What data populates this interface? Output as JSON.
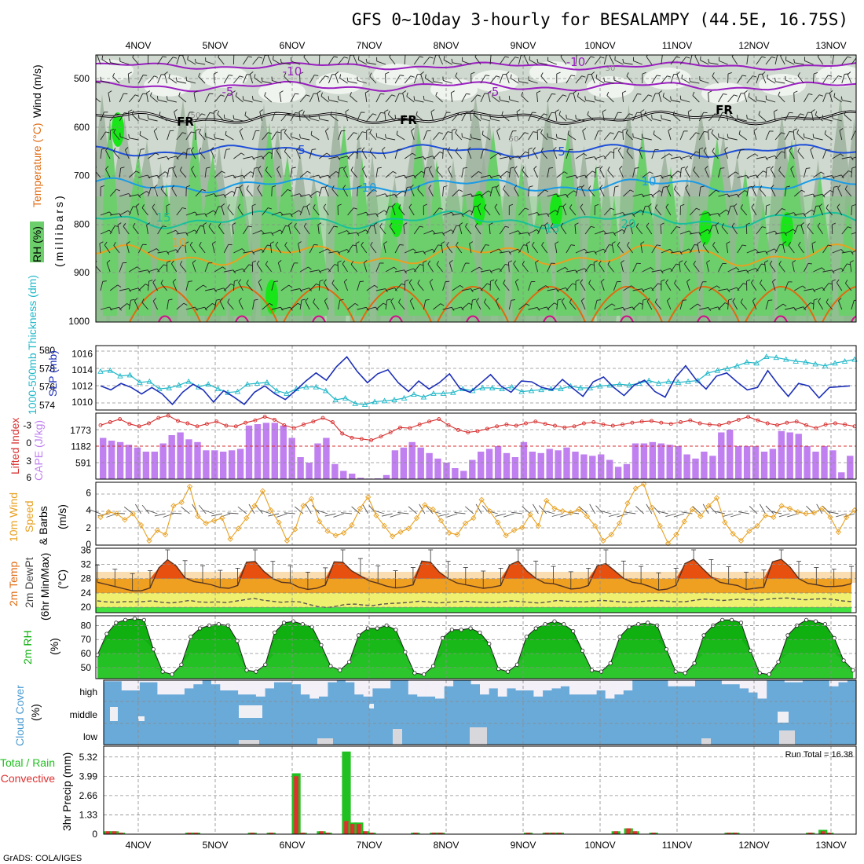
{
  "title": "GFS 0~10day 3-hourly for BESALAMPY (44.5E, 16.75S)",
  "credit": "GrADS: COLA/IGES",
  "date_labels": [
    "4NOV",
    "5NOV",
    "6NOV",
    "7NOV",
    "8NOV",
    "9NOV",
    "10NOV",
    "11NOV",
    "12NOV",
    "13NOV"
  ],
  "colors": {
    "rh_light": "#cfd9cf",
    "rh_mid": "#9aae9a",
    "rh_green": "#6ccf6c",
    "rh_bright": "#19e619",
    "temp_purple": "#9a1fc0",
    "temp_blue": "#1f4fd8",
    "temp_lightblue": "#1a9be6",
    "temp_teal": "#19c09a",
    "temp_orange": "#e8a020",
    "temp_darkorange": "#e06a10",
    "slp_line": "#1c2fb8",
    "thickness_line": "#20b8c8",
    "lifted_index": "#d83030",
    "cape_bar": "#c080f0",
    "wind_speed": "#e8a020",
    "temp_fill_hot": "#e85010",
    "temp_fill_warm": "#f0a020",
    "dew_fill": "#f0f070",
    "rh_green_dark": "#10b010",
    "cloud_blue": "#6aaad8",
    "precip_total": "#20c020",
    "precip_conv": "#e03030"
  },
  "panels": {
    "upper_air": {
      "ylabel_rh": "RH (%)",
      "ylabel_temp": "Temperature (°C)",
      "ylabel_wind": "Wind (m/s)",
      "ylabel_unit": "(millibars)",
      "y_ticks": [
        "500",
        "600",
        "700",
        "800",
        "900",
        "1000"
      ],
      "contour_labels": [
        "-10",
        "-10",
        "-5",
        "-5",
        "FR",
        "FR",
        "FR",
        "5",
        "5",
        "10",
        "10",
        "15",
        "15",
        "10",
        "20",
        "30",
        "50",
        "50"
      ]
    },
    "slp": {
      "ylabel_thk": "1000-500mb Thickness (dm)",
      "ylabel_slp": "SLP (mb)",
      "left_ticks": [
        "580",
        "578",
        "576",
        "574"
      ],
      "right_ticks": [
        "1016",
        "1014",
        "1012",
        "1010"
      ]
    },
    "li": {
      "ylabel_li": "Lifted Index",
      "ylabel_cape": "CAPE (J/kg)",
      "left_ticks": [
        "-3",
        "0",
        "3",
        "6"
      ],
      "right_ticks": [
        "1773",
        "1182",
        "591"
      ]
    },
    "wind10": {
      "ylabel1": "10m Wind",
      "ylabel2": "Speed",
      "ylabel3": "& Barbs",
      "unit": "(m/s)",
      "ticks": [
        "6",
        "4",
        "2",
        "0"
      ]
    },
    "temp2m": {
      "ylabel1": "2m Temp",
      "ylabel2": "2m DewPt",
      "ylabel3": "(6hr Min/Max)",
      "unit": "(°C)",
      "ticks": [
        "36",
        "32",
        "28",
        "24",
        "20"
      ]
    },
    "rh2m": {
      "ylabel": "2m RH",
      "unit": "(%)",
      "ticks": [
        "80",
        "70",
        "60",
        "50"
      ]
    },
    "cloud": {
      "ylabel": "Cloud Cover",
      "unit": "(%)",
      "levels": [
        "high",
        "middle",
        "low"
      ]
    },
    "precip": {
      "ylabel_total": "Total / Rain",
      "ylabel_conv": "Convective",
      "ylabel": "3hr Precip (mm)",
      "ticks": [
        "5.32",
        "3.99",
        "2.66",
        "1.33",
        "0"
      ],
      "run_total": "Run Total = 16.38"
    }
  },
  "chart_data": [
    {
      "type": "line",
      "name": "slp",
      "ylabel": "SLP (mb)",
      "ylim": [
        1009,
        1017
      ],
      "values": [
        1012,
        1011.5,
        1012.3,
        1011.8,
        1011,
        1011.8,
        1011,
        1009.7,
        1011.2,
        1012.2,
        1011.5,
        1010,
        1011.4,
        1010.6,
        1009.7,
        1011.2,
        1012,
        1011,
        1010.3,
        1011.4,
        1012.6,
        1013.6,
        1012.7,
        1014.4,
        1015.6,
        1013.8,
        1012.4,
        1013.5,
        1014,
        1012.4,
        1011.3,
        1012.6,
        1011.6,
        1012.4,
        1013.5,
        1011.7,
        1011.2,
        1012.3,
        1013.4,
        1012,
        1011.2,
        1012.6,
        1012.5,
        1011.8,
        1011.5,
        1012.8,
        1011.7,
        1010.7,
        1012.5,
        1013.1,
        1011.8,
        1010.8,
        1012.1,
        1012.7,
        1011.3,
        1010.6,
        1013,
        1014.5,
        1012.8,
        1011.6,
        1013.2,
        1013.6,
        1012.5,
        1011.5,
        1011.8,
        1013.9,
        1012.2,
        1010.7,
        1012.3,
        1012,
        1010.5,
        1011.8,
        1011.9,
        1012
      ],
      "grid": true
    },
    {
      "type": "line",
      "name": "thickness",
      "ylabel": "1000-500mb Thickness (dm)",
      "ylim": [
        573.5,
        580.5
      ],
      "values": [
        577.7,
        577.8,
        577.2,
        577.3,
        576.5,
        576.6,
        575.8,
        575.9,
        576.2,
        576.6,
        576,
        576.3,
        575.8,
        575.4,
        575.5,
        576.3,
        576.4,
        576.5,
        575.6,
        575.3,
        575.8,
        576,
        576,
        575.6,
        574.6,
        574.8,
        574.2,
        574.1,
        574.4,
        574.5,
        574.6,
        574.8,
        575.2,
        574.9,
        575.3,
        575.3,
        575.4,
        575.8,
        575.6,
        575.9,
        575.9,
        575.8,
        576,
        575.5,
        575.6,
        575.7,
        575.8,
        575.8,
        576.1,
        575.9,
        575.9,
        576.1,
        576.2,
        576.3,
        576.2,
        576.4,
        576.7,
        576.4,
        576.6,
        576.5,
        576.6,
        576.7,
        577.5,
        577.8,
        578,
        578.3,
        578.7,
        578.6,
        579.3,
        579.2,
        579,
        578.8,
        578.7,
        578.5,
        578.3,
        578.6,
        578.8,
        579
      ],
      "grid": true
    },
    {
      "type": "line",
      "name": "lifted_index",
      "ylabel": "Lifted Index",
      "ylim": [
        -5,
        6
      ],
      "values": [
        -3,
        -3.5,
        -4,
        -3.2,
        -2.8,
        -3.3,
        -4.2,
        -4.6,
        -3.7,
        -3.3,
        -2.8,
        -3.2,
        -3.6,
        -2.9,
        -2.8,
        -3.4,
        -3.8,
        -4.4,
        -3.9,
        -3,
        -2.5,
        -3.1,
        -3.6,
        -4.2,
        -3.5,
        -1.6,
        -0.9,
        -0.7,
        -0.5,
        -1.1,
        -1.8,
        -2.6,
        -2.5,
        -3.1,
        -3.6,
        -4,
        -3,
        -2.2,
        -1.8,
        -2,
        -2.4,
        -2.8,
        -3.1,
        -2.9,
        -3.3,
        -3.6,
        -3.2,
        -2.9,
        -2.6,
        -2.8,
        -3.3,
        -3.5,
        -3.1,
        -2.9,
        -3.1,
        -3.4,
        -3.6,
        -3.7,
        -3.4,
        -3.2,
        -3.5,
        -3.8,
        -3.3,
        -3.1,
        -3,
        -3.4,
        -3.9,
        -4.4,
        -3.8,
        -3.3,
        -3,
        -3.4,
        -3.6,
        -3,
        -2.5,
        -3.1,
        -3.3,
        -3.1,
        -2.8
      ],
      "grid": true
    },
    {
      "type": "bar",
      "name": "cape",
      "ylabel": "CAPE (J/kg)",
      "ylim": [
        0,
        2400
      ],
      "values": [
        1500,
        1400,
        1350,
        1250,
        1150,
        1000,
        1000,
        1300,
        1600,
        1700,
        1450,
        1350,
        1050,
        1050,
        1000,
        1050,
        1100,
        1950,
        2000,
        2050,
        2050,
        1950,
        1500,
        800,
        600,
        1300,
        1500,
        550,
        300,
        200,
        50,
        20,
        30,
        150,
        1050,
        1150,
        1350,
        1150,
        950,
        750,
        600,
        400,
        300,
        700,
        1000,
        1100,
        1200,
        950,
        800,
        1350,
        1000,
        950,
        1100,
        1050,
        1150,
        1000,
        900,
        850,
        900,
        700,
        450,
        550,
        1300,
        1300,
        1350,
        1300,
        1250,
        1200,
        900,
        750,
        1000,
        850,
        1700,
        1800,
        1200,
        1200,
        1200,
        1000,
        1100,
        1750,
        1700,
        1650,
        1200,
        1000,
        1200,
        1050,
        250,
        850
      ],
      "grid": true
    },
    {
      "type": "line",
      "name": "wind_speed_10m",
      "ylabel": "(m/s)",
      "ylim": [
        0,
        7.2
      ],
      "values": [
        3.2,
        3.8,
        3.6,
        2.9,
        3.6,
        2.3,
        0.5,
        1.7,
        1.2,
        4.5,
        4.9,
        6.7,
        3.3,
        2.5,
        2.8,
        3.1,
        0.7,
        1.9,
        3.1,
        4.5,
        6.2,
        4,
        2.6,
        0.5,
        1.8,
        4.5,
        5.3,
        2.7,
        1.6,
        1.1,
        1.4,
        2.3,
        4.2,
        5.5,
        3.4,
        2.2,
        1,
        1.5,
        1.9,
        3.1,
        4.6,
        4.1,
        2.8,
        1.4,
        1.2,
        2.5,
        3.1,
        5.2,
        3.9,
        2.6,
        1.1,
        1.7,
        2,
        3.5,
        2.2,
        5.1,
        4.2,
        3.9,
        3.7,
        4.1,
        3.3,
        2.2,
        0.5,
        1.2,
        2.5,
        4.8,
        6.5,
        7,
        4.3,
        2.2,
        0.2,
        1.2,
        2.7,
        4.1,
        3.3,
        4.5,
        5.4,
        2.6,
        1.3,
        0.5,
        1.6,
        2.2,
        3.4,
        3.2,
        4.5,
        4.2,
        3.8,
        3.6,
        3.7,
        4.2,
        3.2,
        1.5,
        3.2,
        4
      ],
      "grid": true
    },
    {
      "type": "area",
      "name": "temp_2m",
      "ylabel": "(°C)",
      "ylim": [
        18.5,
        36.5
      ],
      "values": [
        27,
        26.4,
        25.8,
        25.2,
        24.6,
        24.6,
        25.4,
        31,
        33.3,
        31.5,
        28.2,
        27.2,
        26.8,
        26.3,
        25.5,
        25.3,
        26.1,
        32.6,
        32.8,
        30,
        28,
        27,
        26.8,
        25.6,
        25,
        25.3,
        26.2,
        32.7,
        32.6,
        30.2,
        28.8,
        27.4,
        26.7,
        25.9,
        25.4,
        25.7,
        26.3,
        32.9,
        32.6,
        29.8,
        28,
        26.8,
        26.3,
        25.8,
        25.3,
        25.6,
        26.1,
        31.8,
        32.9,
        30.1,
        28.1,
        26.8,
        26.6,
        25.9,
        25.1,
        25.3,
        26.1,
        31.6,
        32.2,
        30.2,
        28.1,
        27,
        26.6,
        25.8,
        24.8,
        25.1,
        26.1,
        32.2,
        33.4,
        30.9,
        28.5,
        27,
        26.5,
        26.1,
        25,
        25.3,
        25.6,
        32.7,
        33.4,
        31.2,
        28,
        26.7,
        26.3,
        25.8,
        25.8,
        26,
        26.6
      ],
      "grid": true
    },
    {
      "type": "line",
      "name": "dewpoint_2m",
      "ylabel": "(°C)",
      "ylim": [
        18.5,
        36.5
      ],
      "values": [
        21.8,
        21.5,
        21.4,
        21.6,
        21.5,
        21.6,
        21.8,
        21.4,
        21.2,
        21.5,
        21.9,
        21.5,
        21.4,
        21.5,
        21.3,
        21.7,
        22.1,
        22.5,
        22,
        21.7,
        21.4,
        21.6,
        21.5,
        20.8,
        20.2,
        19.9,
        20.3,
        20.8,
        20.9,
        20.6,
        20.5,
        20.9,
        21.1,
        21.2,
        21.4,
        21.7,
        21.5,
        21.2,
        21.4,
        21.5,
        21.7,
        21.5,
        21.4,
        21.3,
        21.5,
        21.8,
        21.6,
        21.4,
        21.2,
        21.5,
        21.9,
        21.7,
        21.6,
        21.5,
        21.8,
        21.9,
        21.7,
        21.5,
        21.4,
        21.6,
        21.8,
        21.9,
        21.7,
        21.5,
        21.6,
        22,
        22.3,
        22.1,
        21.9,
        22.1,
        22.3,
        22.1,
        22,
        22.3,
        22.5,
        22.6,
        22.3,
        22.1,
        22.3,
        22.4,
        22.2,
        21.8,
        21.6
      ],
      "grid": true
    },
    {
      "type": "area",
      "name": "rh_2m",
      "ylabel": "(%)",
      "ylim": [
        42,
        87
      ],
      "values": [
        59,
        74,
        82,
        84,
        85,
        84,
        63,
        47,
        45,
        52,
        72,
        78,
        80,
        81,
        80,
        69,
        48,
        47,
        52,
        75,
        82,
        83,
        81,
        79,
        66,
        51,
        48,
        54,
        73,
        78,
        78,
        80,
        77,
        61,
        46,
        45,
        51,
        71,
        77,
        77,
        78,
        75,
        67,
        49,
        47,
        52,
        72,
        78,
        81,
        83,
        81,
        76,
        62,
        48,
        47,
        53,
        72,
        79,
        81,
        82,
        80,
        63,
        47,
        46,
        53,
        73,
        80,
        84,
        84,
        82,
        62,
        46,
        45,
        54,
        73,
        80,
        84,
        83,
        81,
        71,
        55,
        48
      ],
      "grid": true
    },
    {
      "type": "bar",
      "name": "cloud_cover_high",
      "ylabel": "Cloud Cover (%)",
      "ylim": [
        0,
        100
      ],
      "values": [
        95,
        95,
        50,
        50,
        90,
        90,
        30,
        30,
        30,
        60,
        80,
        100,
        80,
        50,
        50,
        30,
        30,
        20,
        60,
        90,
        90,
        80,
        30,
        10,
        20,
        90,
        100,
        90,
        30,
        20,
        60,
        60,
        100,
        100,
        30,
        20,
        20,
        10,
        70,
        100,
        100,
        80,
        30,
        60,
        20,
        60,
        50,
        50,
        20,
        50,
        60,
        70,
        30,
        30,
        30,
        50,
        10,
        30,
        50,
        100,
        100,
        100,
        100,
        70,
        70,
        70,
        100,
        100,
        100,
        80,
        80,
        60,
        40,
        10,
        100,
        100,
        90,
        90,
        100,
        100,
        100,
        70,
        90,
        100
      ]
    },
    {
      "type": "bar",
      "name": "precip_total",
      "ylabel": "3hr Precip (mm)",
      "ylim": [
        0,
        5.85
      ],
      "values": [
        0.2,
        0.2,
        0.1,
        0,
        0,
        0,
        0,
        0,
        0,
        0,
        0,
        0,
        0,
        0.1,
        0.1,
        0,
        0,
        0,
        0,
        0,
        0,
        0,
        0,
        0.1,
        0,
        0,
        0.1,
        0,
        0,
        0,
        4.2,
        0.1,
        0,
        0,
        0.2,
        0.1,
        0,
        0,
        5.7,
        0.8,
        0.8,
        0.2,
        0.1,
        0,
        0,
        0,
        0,
        0,
        0,
        0.1,
        0,
        0,
        0.1,
        0.1,
        0,
        0,
        0,
        0,
        0,
        0,
        0,
        0,
        0,
        0,
        0,
        0,
        0,
        0.1,
        0,
        0,
        0.1,
        0.1,
        0.1,
        0,
        0,
        0,
        0,
        0,
        0,
        0,
        0,
        0.2,
        0,
        0.4,
        0.2,
        0,
        0,
        0.1,
        0,
        0,
        0,
        0,
        0,
        0,
        0,
        0,
        0,
        0,
        0,
        0.1,
        0.1,
        0,
        0,
        0,
        0,
        0,
        0,
        0,
        0,
        0,
        0,
        0,
        0.1,
        0,
        0.3,
        0.1,
        0,
        0,
        0,
        0
      ],
      "grid": true
    },
    {
      "type": "bar",
      "name": "precip_convective",
      "ylabel": "3hr Precip (mm)",
      "ylim": [
        0,
        5.85
      ],
      "values": [
        0.2,
        0.2,
        0.1,
        0,
        0,
        0,
        0,
        0,
        0,
        0,
        0,
        0,
        0,
        0.1,
        0.1,
        0,
        0,
        0,
        0,
        0,
        0,
        0,
        0,
        0.1,
        0,
        0,
        0.1,
        0,
        0,
        0,
        4,
        0.1,
        0,
        0,
        0.2,
        0.1,
        0,
        0,
        0.9,
        0.7,
        0.7,
        0.2,
        0.1,
        0,
        0,
        0,
        0,
        0,
        0,
        0.1,
        0,
        0,
        0.1,
        0.1,
        0,
        0,
        0,
        0,
        0,
        0,
        0,
        0,
        0,
        0,
        0,
        0,
        0,
        0.1,
        0,
        0,
        0.1,
        0.1,
        0.1,
        0,
        0,
        0,
        0,
        0,
        0,
        0,
        0,
        0.2,
        0,
        0.4,
        0.2,
        0,
        0,
        0.1,
        0,
        0,
        0,
        0,
        0,
        0,
        0,
        0,
        0,
        0,
        0,
        0.1,
        0.1,
        0,
        0,
        0,
        0,
        0,
        0,
        0,
        0,
        0,
        0,
        0,
        0.1,
        0,
        0.2,
        0.1,
        0,
        0,
        0,
        0
      ]
    }
  ]
}
